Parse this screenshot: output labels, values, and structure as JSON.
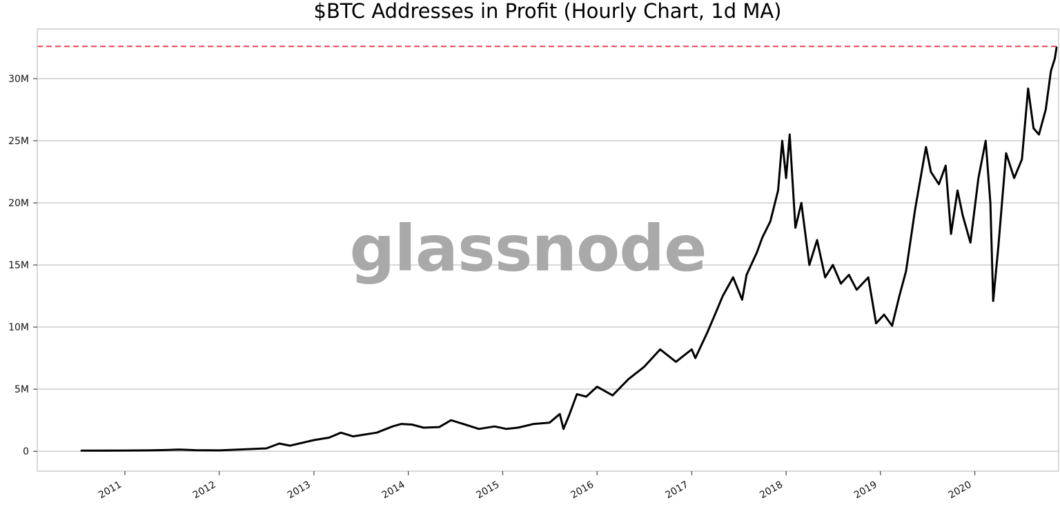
{
  "chart_data": {
    "type": "line",
    "title": "$BTC Addresses in Profit (Hourly Chart, 1d MA)",
    "xlabel": "",
    "ylabel": "",
    "watermark": "glassnode",
    "x_tick_labels": [
      "2011",
      "2012",
      "2013",
      "2014",
      "2015",
      "2016",
      "2017",
      "2018",
      "2019",
      "2020"
    ],
    "y_tick_labels": [
      "0",
      "5M",
      "10M",
      "15M",
      "20M",
      "25M",
      "30M"
    ],
    "y_tick_values": [
      0,
      5000000,
      10000000,
      15000000,
      20000000,
      25000000,
      30000000
    ],
    "xlim": [
      "2010-01-27",
      "2020-11-20"
    ],
    "ylim": [
      -1600000,
      34000000
    ],
    "grid": "horizontal",
    "reference_line": {
      "value": 32600000,
      "color": "#e8414f",
      "style": "dashed"
    },
    "line_color": "#000000",
    "x": [
      "2010-07-17",
      "2010-10-01",
      "2011-01-01",
      "2011-04-01",
      "2011-06-10",
      "2011-08-01",
      "2011-10-01",
      "2012-01-01",
      "2012-04-01",
      "2012-07-01",
      "2012-08-20",
      "2012-10-01",
      "2013-01-01",
      "2013-03-01",
      "2013-04-15",
      "2013-06-01",
      "2013-09-01",
      "2013-11-01",
      "2013-12-05",
      "2014-01-15",
      "2014-03-01",
      "2014-05-01",
      "2014-06-15",
      "2014-08-01",
      "2014-10-01",
      "2014-12-01",
      "2015-01-15",
      "2015-03-01",
      "2015-05-01",
      "2015-07-01",
      "2015-08-10",
      "2015-08-24",
      "2015-09-15",
      "2015-10-15",
      "2015-11-20",
      "2016-01-01",
      "2016-03-01",
      "2016-05-01",
      "2016-07-01",
      "2016-08-01",
      "2016-09-01",
      "2016-11-01",
      "2017-01-01",
      "2017-01-15",
      "2017-03-01",
      "2017-04-01",
      "2017-05-01",
      "2017-06-10",
      "2017-07-15",
      "2017-08-01",
      "2017-09-10",
      "2017-10-01",
      "2017-11-01",
      "2017-12-01",
      "2017-12-17",
      "2018-01-01",
      "2018-01-15",
      "2018-02-06",
      "2018-03-01",
      "2018-04-01",
      "2018-05-01",
      "2018-06-01",
      "2018-07-01",
      "2018-08-01",
      "2018-09-01",
      "2018-10-01",
      "2018-11-15",
      "2018-12-15",
      "2019-01-15",
      "2019-02-15",
      "2019-03-15",
      "2019-04-10",
      "2019-05-15",
      "2019-06-26",
      "2019-07-15",
      "2019-08-15",
      "2019-09-10",
      "2019-10-01",
      "2019-10-26",
      "2019-11-15",
      "2019-12-15",
      "2020-01-15",
      "2020-02-12",
      "2020-03-01",
      "2020-03-12",
      "2020-04-01",
      "2020-05-01",
      "2020-06-01",
      "2020-07-01",
      "2020-07-25",
      "2020-08-15",
      "2020-09-05",
      "2020-10-01",
      "2020-10-21",
      "2020-11-05",
      "2020-11-12"
    ],
    "series": [
      {
        "values": [
          50000,
          50000,
          60000,
          70000,
          100000,
          140000,
          90000,
          70000,
          150000,
          230000,
          620000,
          450000,
          900000,
          1100000,
          1500000,
          1200000,
          1500000,
          2000000,
          2200000,
          2150000,
          1900000,
          1950000,
          2500000,
          2200000,
          1800000,
          2000000,
          1800000,
          1900000,
          2200000,
          2300000,
          3000000,
          1800000,
          2900000,
          4600000,
          4400000,
          5200000,
          4500000,
          5800000,
          6800000,
          7500000,
          8200000,
          7200000,
          8200000,
          7500000,
          9500000,
          11000000,
          12500000,
          14000000,
          12200000,
          14200000,
          16000000,
          17200000,
          18500000,
          21000000,
          25000000,
          22000000,
          25500000,
          18000000,
          20000000,
          15000000,
          17000000,
          14000000,
          15000000,
          13500000,
          14200000,
          13000000,
          14000000,
          10300000,
          11000000,
          10100000,
          12500000,
          14500000,
          19500000,
          24500000,
          22500000,
          21500000,
          23000000,
          17500000,
          21000000,
          19000000,
          16800000,
          22000000,
          25000000,
          20000000,
          12100000,
          16500000,
          24000000,
          22000000,
          23500000,
          29200000,
          26000000,
          25500000,
          27500000,
          30600000,
          31600000,
          32500000
        ]
      }
    ]
  }
}
